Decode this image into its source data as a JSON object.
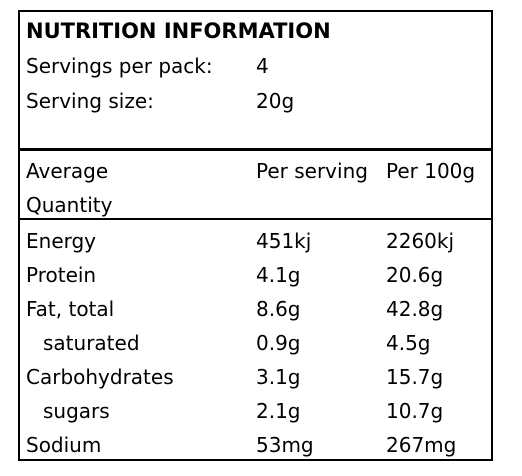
{
  "panel": {
    "title": "NUTRITION INFORMATION",
    "servings_label": "Servings per pack:",
    "servings_value": "4",
    "serving_size_label": "Serving size:",
    "serving_size_value": "20g"
  },
  "table": {
    "headers": {
      "col1_line1": "Average",
      "col1_line2": "Quantity",
      "col2": "Per serving",
      "col3": "Per 100g"
    },
    "rows": [
      {
        "label": "Energy",
        "per_serving": "451kj",
        "per_100g": "2260kj"
      },
      {
        "label": "Protein",
        "per_serving": "4.1g",
        "per_100g": "20.6g"
      },
      {
        "label": "Fat, total",
        "per_serving": "8.6g",
        "per_100g": "42.8g"
      },
      {
        "label": "saturated",
        "per_serving": "0.9g",
        "per_100g": "4.5g"
      },
      {
        "label": "Carbohydrates",
        "per_serving": "3.1g",
        "per_100g": "15.7g"
      },
      {
        "label": "sugars",
        "per_serving": "2.1g",
        "per_100g": "10.7g"
      },
      {
        "label": "Sodium",
        "per_serving": "53mg",
        "per_100g": "267mg"
      }
    ]
  }
}
